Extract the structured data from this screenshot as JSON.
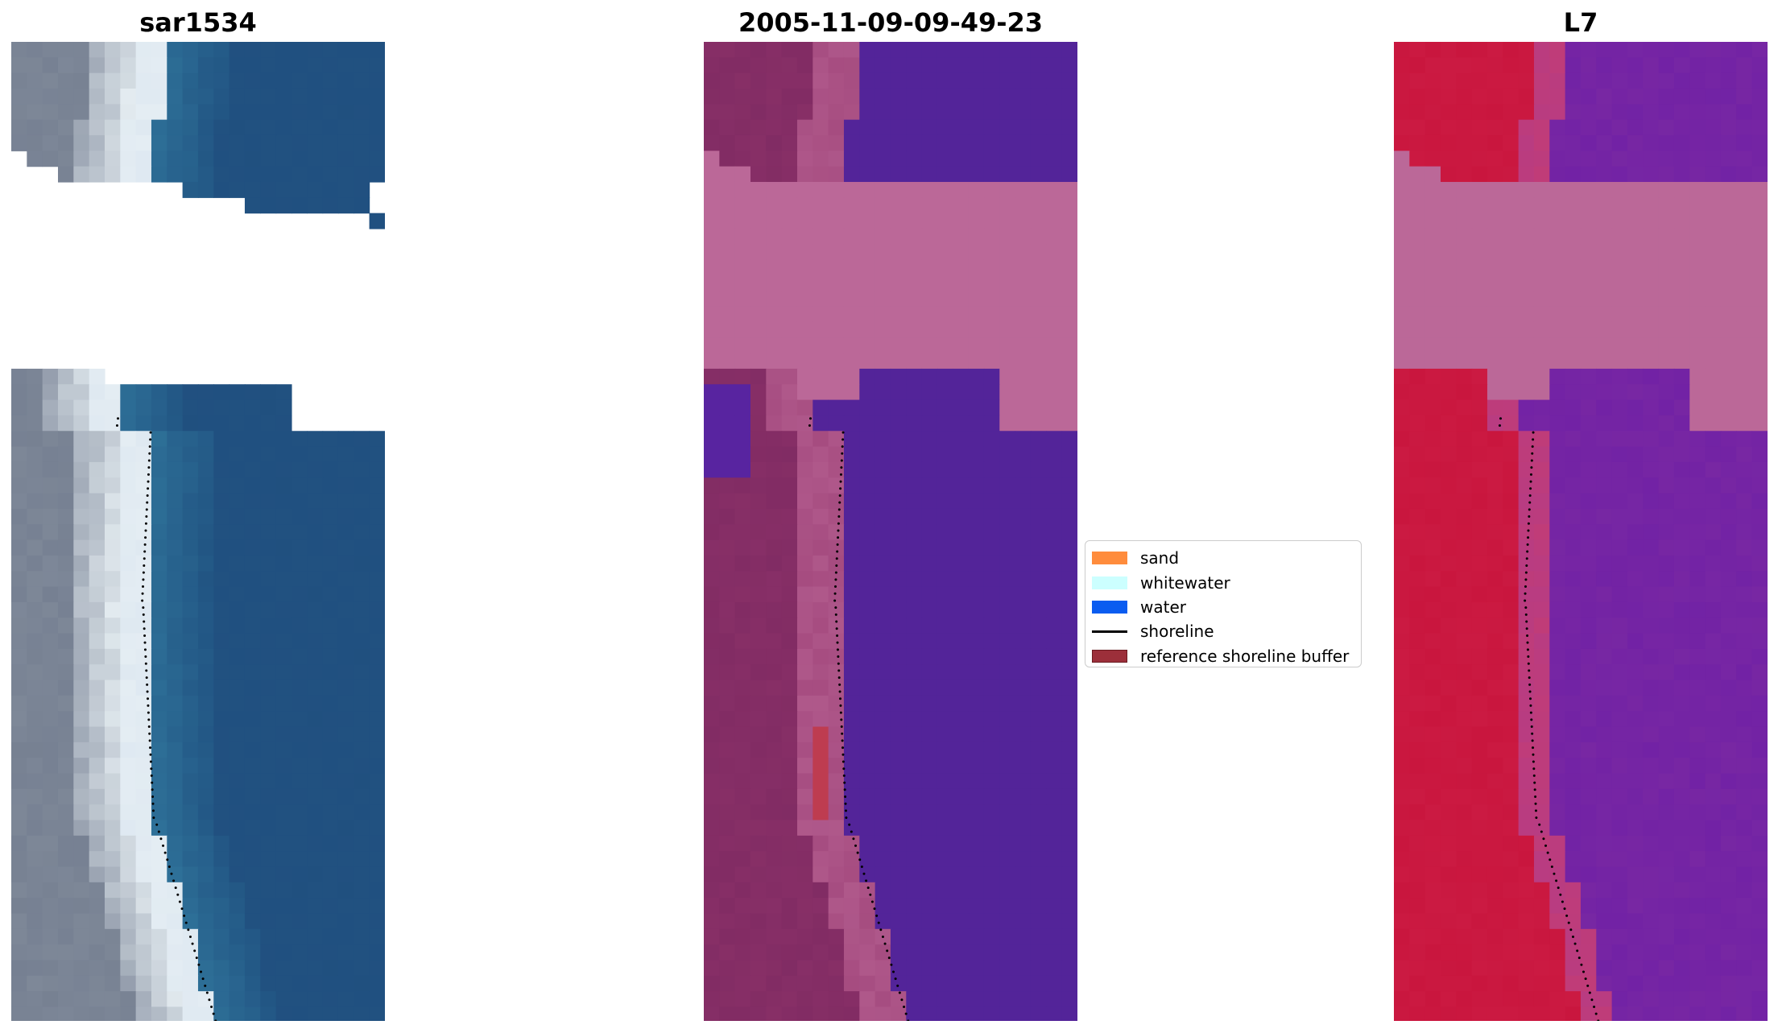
{
  "panels": [
    {
      "title": "sar1534",
      "palette": "rgb"
    },
    {
      "title": "2005-11-09-09-49-23",
      "palette": "classified"
    },
    {
      "title": "L7",
      "palette": "index"
    }
  ],
  "legend": {
    "items": [
      {
        "label": "sand",
        "color": "#ff8c3c",
        "kind": "patch"
      },
      {
        "label": "whitewater",
        "color": "#ccffff",
        "kind": "patch"
      },
      {
        "label": "water",
        "color": "#0a5cf0",
        "kind": "patch"
      },
      {
        "label": "shoreline",
        "color": "#000000",
        "kind": "line"
      },
      {
        "label": "reference shoreline buffer",
        "color": "#9c2f3a",
        "kind": "patch"
      }
    ]
  },
  "colors": {
    "rgb_water": "#1f4f7f",
    "rgb_surf": "#e8f0f4",
    "class_water": "#532499",
    "class_sand": "#7e2a62",
    "class_nodata": "#bb6898",
    "index_water": "#7c2aa2",
    "index_sand": "#c8143c",
    "index_nodata": "#bb6898",
    "shoreline": "#000000"
  }
}
